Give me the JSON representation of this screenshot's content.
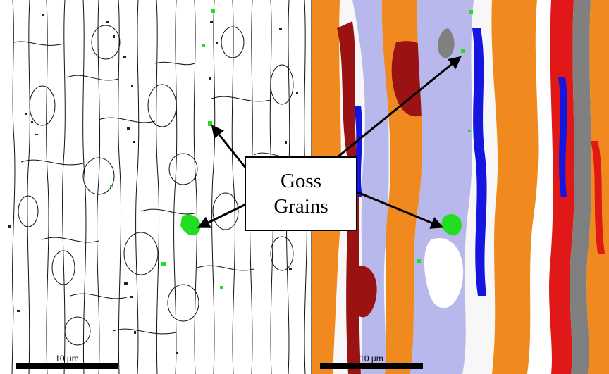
{
  "callout": {
    "line1": "Goss",
    "line2": "Grains"
  },
  "left_panel": {
    "scale_label": "10 µm"
  },
  "right_panel": {
    "scale_label": "10 µm"
  },
  "colors": {
    "goss": "#22dd22",
    "orange": "#f08a1e",
    "dark_red": "#9b1212",
    "lavender": "#b8b8ec",
    "blue": "#1515e0",
    "red": "#e01818",
    "grey": "#808080",
    "white": "#ffffff"
  }
}
